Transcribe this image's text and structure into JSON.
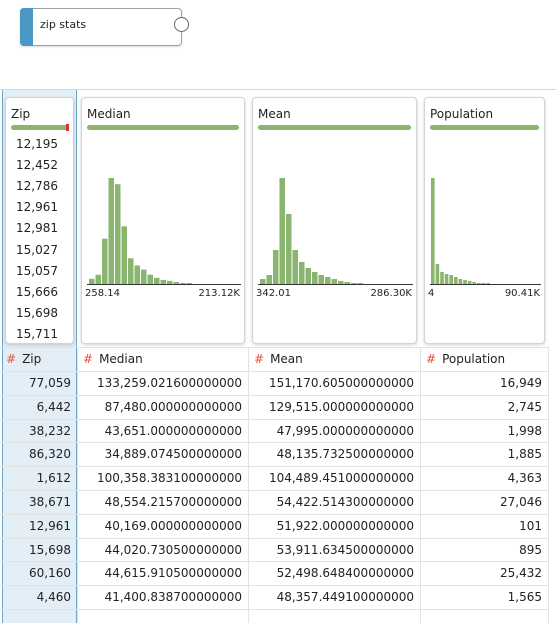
{
  "node": {
    "label": "zip stats"
  },
  "profiles": [
    {
      "name": "Zip",
      "values": [
        "12,195",
        "12,452",
        "12,786",
        "12,961",
        "12,981",
        "15,027",
        "15,057",
        "15,666",
        "15,698",
        "15,711"
      ]
    },
    {
      "name": "Median",
      "histogram": [
        5,
        9,
        44,
        103,
        97,
        56,
        25,
        18,
        14,
        9,
        6,
        4,
        3,
        2,
        1,
        1
      ],
      "min": "258.14",
      "max": "213.12K"
    },
    {
      "name": "Mean",
      "histogram": [
        5,
        9,
        34,
        106,
        70,
        34,
        22,
        16,
        12,
        9,
        7,
        5,
        3,
        2,
        1,
        1
      ],
      "min": "342.01",
      "max": "286.30K"
    },
    {
      "name": "Population",
      "histogram": [
        106,
        20,
        12,
        10,
        9,
        7,
        5,
        4,
        3,
        2,
        1,
        1,
        1
      ],
      "min": "4",
      "max": "90.41K"
    }
  ],
  "table": {
    "columns": [
      "Zip",
      "Median",
      "Mean",
      "Population"
    ],
    "column_types": [
      "#",
      "#",
      "#",
      "#"
    ],
    "rows": [
      [
        "77,059",
        "133,259.021600000000",
        "151,170.605000000000",
        "16,949"
      ],
      [
        "6,442",
        "87,480.000000000000",
        "129,515.000000000000",
        "2,745"
      ],
      [
        "38,232",
        "43,651.000000000000",
        "47,995.000000000000",
        "1,998"
      ],
      [
        "86,320",
        "34,889.074500000000",
        "48,135.732500000000",
        "1,885"
      ],
      [
        "1,612",
        "100,358.383100000000",
        "104,489.451000000000",
        "4,363"
      ],
      [
        "38,671",
        "48,554.215700000000",
        "54,422.514300000000",
        "27,046"
      ],
      [
        "12,961",
        "40,169.000000000000",
        "51,922.000000000000",
        "101"
      ],
      [
        "15,698",
        "44,020.730500000000",
        "53,911.634500000000",
        "895"
      ],
      [
        "60,160",
        "44,615.910500000000",
        "52,498.648400000000",
        "25,432"
      ],
      [
        "4,460",
        "41,400.838700000000",
        "48,357.449100000000",
        "1,565"
      ]
    ]
  }
}
